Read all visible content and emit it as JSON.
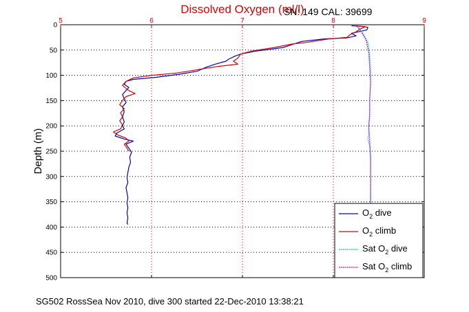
{
  "chart_data": {
    "type": "line",
    "title": "Dissolved Oxygen (ml/l)",
    "subtitle": "SN: 149  CAL: 39699",
    "ylabel": "Depth (m)",
    "xlabel": "",
    "xlim": [
      5,
      9
    ],
    "ylim": [
      0,
      500
    ],
    "y_reversed": true,
    "x_axis_position": "top",
    "grid": true,
    "x_ticks": [
      "5",
      "6",
      "7",
      "8",
      "9"
    ],
    "y_ticks": [
      "0",
      "50",
      "100",
      "150",
      "200",
      "250",
      "300",
      "350",
      "400",
      "450",
      "500"
    ],
    "legend_position": "bottom-right",
    "series": [
      {
        "name": "O2 dive",
        "legend_main": "O",
        "legend_sub": "2",
        "legend_rest": " dive",
        "color": "#0000cc",
        "style": "solid",
        "points": [
          [
            8.2,
            2
          ],
          [
            8.3,
            3
          ],
          [
            8.38,
            5
          ],
          [
            8.37,
            10
          ],
          [
            8.2,
            17
          ],
          [
            8.25,
            22
          ],
          [
            8.15,
            26
          ],
          [
            7.9,
            28
          ],
          [
            7.65,
            33
          ],
          [
            7.45,
            45
          ],
          [
            7.15,
            52
          ],
          [
            6.98,
            58
          ],
          [
            6.92,
            62
          ],
          [
            6.85,
            68
          ],
          [
            6.82,
            72
          ],
          [
            6.7,
            78
          ],
          [
            6.6,
            84
          ],
          [
            6.5,
            92
          ],
          [
            6.3,
            98
          ],
          [
            6.05,
            104
          ],
          [
            5.8,
            108
          ],
          [
            5.72,
            112
          ],
          [
            5.7,
            118
          ],
          [
            5.75,
            124
          ],
          [
            5.72,
            130
          ],
          [
            5.68,
            138
          ],
          [
            5.7,
            146
          ],
          [
            5.72,
            154
          ],
          [
            5.68,
            162
          ],
          [
            5.7,
            172
          ],
          [
            5.68,
            182
          ],
          [
            5.7,
            192
          ],
          [
            5.68,
            200
          ],
          [
            5.7,
            206
          ],
          [
            5.62,
            214
          ],
          [
            5.6,
            220
          ],
          [
            5.7,
            226
          ],
          [
            5.8,
            230
          ],
          [
            5.72,
            236
          ],
          [
            5.75,
            244
          ],
          [
            5.78,
            252
          ],
          [
            5.76,
            262
          ],
          [
            5.77,
            272
          ],
          [
            5.75,
            282
          ],
          [
            5.74,
            292
          ],
          [
            5.73,
            302
          ],
          [
            5.74,
            312
          ],
          [
            5.72,
            322
          ],
          [
            5.73,
            332
          ],
          [
            5.74,
            342
          ],
          [
            5.73,
            352
          ],
          [
            5.74,
            362
          ],
          [
            5.73,
            372
          ],
          [
            5.74,
            382
          ],
          [
            5.73,
            392
          ],
          [
            5.74,
            395
          ]
        ]
      },
      {
        "name": "O2 climb",
        "legend_main": "O",
        "legend_sub": "2",
        "legend_rest": " climb",
        "color": "#dd0000",
        "style": "solid",
        "points": [
          [
            8.25,
            2
          ],
          [
            8.35,
            4
          ],
          [
            8.3,
            8
          ],
          [
            8.25,
            14
          ],
          [
            8.18,
            20
          ],
          [
            8.15,
            25
          ],
          [
            7.95,
            28
          ],
          [
            7.7,
            35
          ],
          [
            7.55,
            38
          ],
          [
            7.35,
            45
          ],
          [
            7.1,
            52
          ],
          [
            6.98,
            58
          ],
          [
            6.95,
            66
          ],
          [
            6.9,
            72
          ],
          [
            6.95,
            78
          ],
          [
            6.75,
            82
          ],
          [
            6.6,
            86
          ],
          [
            6.4,
            92
          ],
          [
            6.25,
            96
          ],
          [
            6.0,
            100
          ],
          [
            5.8,
            105
          ],
          [
            5.72,
            112
          ],
          [
            5.68,
            120
          ],
          [
            5.72,
            126
          ],
          [
            5.75,
            130
          ],
          [
            5.82,
            136
          ],
          [
            5.72,
            142
          ],
          [
            5.68,
            150
          ],
          [
            5.65,
            158
          ],
          [
            5.7,
            166
          ],
          [
            5.66,
            174
          ],
          [
            5.68,
            182
          ],
          [
            5.65,
            190
          ],
          [
            5.68,
            198
          ],
          [
            5.66,
            206
          ],
          [
            5.58,
            212
          ],
          [
            5.63,
            218
          ],
          [
            5.72,
            224
          ],
          [
            5.75,
            230
          ],
          [
            5.7,
            236
          ],
          [
            5.73,
            244
          ],
          [
            5.75,
            250
          ]
        ]
      },
      {
        "name": "Sat O2 dive",
        "legend_main": "Sat O",
        "legend_sub": "2",
        "legend_rest": " dive",
        "color": "#00cccc",
        "style": "dotted",
        "points": [
          [
            8.28,
            5
          ],
          [
            8.32,
            15
          ],
          [
            8.38,
            35
          ],
          [
            8.4,
            60
          ],
          [
            8.41,
            90
          ],
          [
            8.41,
            120
          ],
          [
            8.4,
            150
          ],
          [
            8.4,
            180
          ],
          [
            8.39,
            200
          ],
          [
            8.39,
            215
          ],
          [
            8.38,
            225
          ],
          [
            8.4,
            240
          ],
          [
            8.41,
            270
          ],
          [
            8.41,
            300
          ],
          [
            8.41,
            330
          ],
          [
            8.41,
            360
          ],
          [
            8.41,
            385
          ]
        ]
      },
      {
        "name": "Sat O2 climb",
        "legend_main": "Sat O",
        "legend_sub": "2",
        "legend_rest": " climb",
        "color": "#dd00dd",
        "style": "dotted",
        "points": [
          [
            8.26,
            3
          ],
          [
            8.3,
            12
          ],
          [
            8.36,
            30
          ],
          [
            8.39,
            55
          ],
          [
            8.4,
            85
          ],
          [
            8.41,
            115
          ],
          [
            8.4,
            145
          ],
          [
            8.4,
            175
          ],
          [
            8.39,
            200
          ],
          [
            8.4,
            230
          ],
          [
            8.41,
            260
          ],
          [
            8.41,
            290
          ],
          [
            8.41,
            320
          ],
          [
            8.41,
            350
          ],
          [
            8.41,
            380
          ]
        ]
      }
    ]
  },
  "footer_text": "SG502 RossSea Nov 2010, dive 300 started 22-Dec-2010 13:38:21"
}
